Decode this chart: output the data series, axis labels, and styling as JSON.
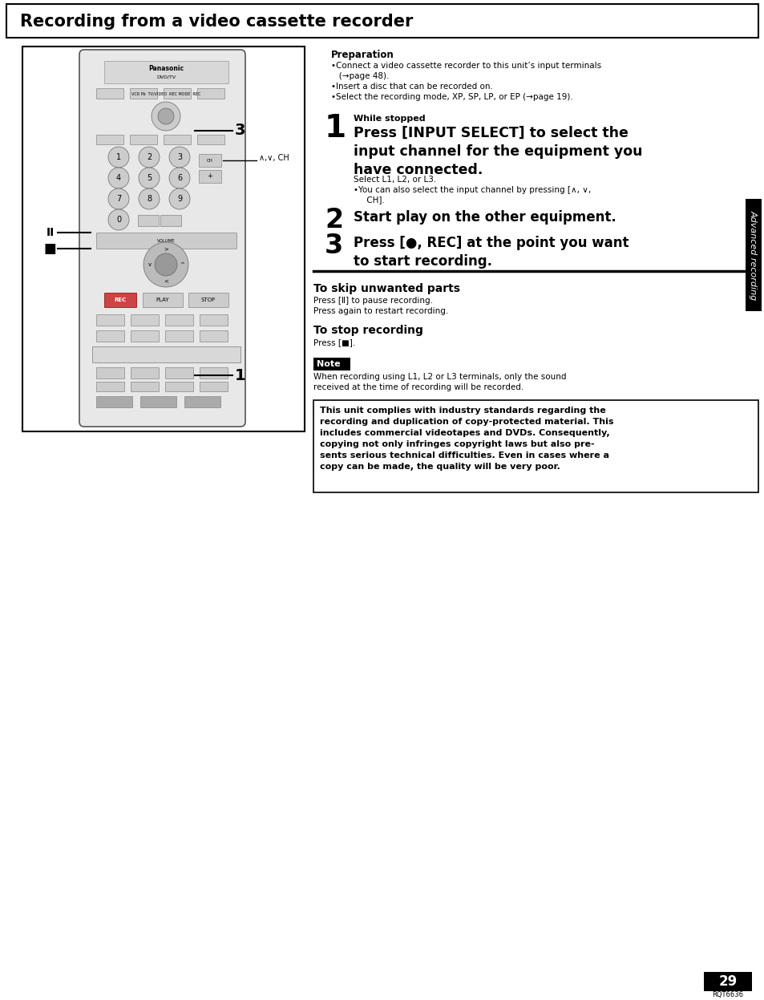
{
  "page_bg": "#ffffff",
  "title": "Recording from a video cassette recorder",
  "preparation_label": "Preparation",
  "preparation_bullets": [
    "Connect a video cassette recorder to this unit’s input terminals\n    (→page 48).",
    "Insert a disc that can be recorded on.",
    "Select the recording mode, XP, SP, LP, or EP (→page 19)."
  ],
  "step1_num": "1",
  "step1_sub": "While stopped",
  "step1_text": "Press [INPUT SELECT] to select the\ninput channel for the equipment you\nhave connected.",
  "step1_detail1": "Select L1, L2, or L3.",
  "step1_detail2": "•You can also select the input channel by pressing [∧, ∨,\n     CH].",
  "step2_num": "2",
  "step2_text": "Start play on the other equipment.",
  "step3_num": "3",
  "step3_text": "Press [●, REC] at the point you want\nto start recording.",
  "skip_title": "To skip unwanted parts",
  "skip_text1": "Press [Ⅱ] to pause recording.",
  "skip_text2": "Press again to restart recording.",
  "stop_title": "To stop recording",
  "stop_text": "Press [■].",
  "note_label": "Note",
  "note_text": "When recording using L1, L2 or L3 terminals, only the sound\nreceived at the time of recording will be recorded.",
  "warning_text": "This unit complies with industry standards regarding the\nrecording and duplication of copy-protected material. This\nincludes commercial videotapes and DVDs. Consequently,\ncopying not only infringes copyright laws but also pre-\nsents serious technical difficulties. Even in cases where a\ncopy can be made, the quality will be very poor.",
  "side_label": "Advanced recording",
  "page_num": "29",
  "page_code": "RQT6636"
}
